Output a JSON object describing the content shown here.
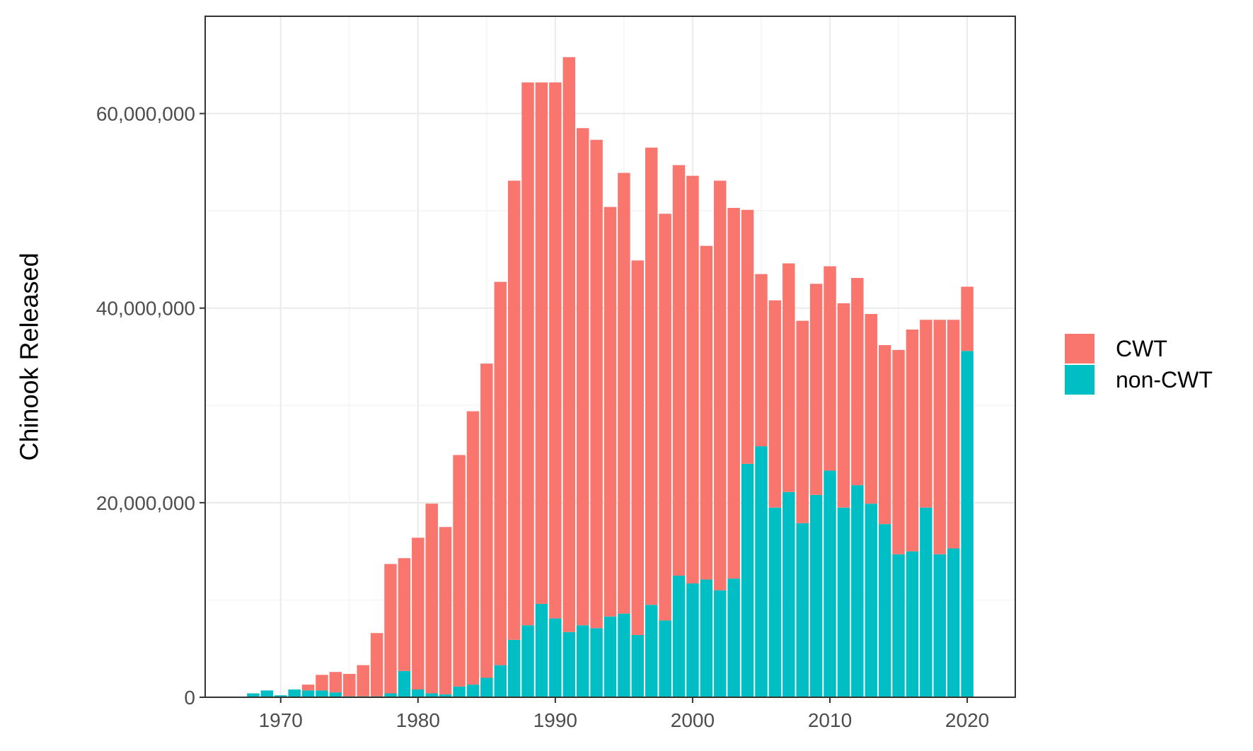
{
  "chart_data": {
    "type": "bar",
    "stacked": true,
    "title": "",
    "xlabel": "",
    "ylabel": "Chinook Released",
    "xlim": [
      1964.5,
      2023.5
    ],
    "ylim": [
      0,
      70000000
    ],
    "x_ticks": [
      1970,
      1980,
      1990,
      2000,
      2010,
      2020
    ],
    "x_tick_labels": [
      "1970",
      "1980",
      "1990",
      "2000",
      "2010",
      "2020"
    ],
    "y_ticks": [
      0,
      20000000,
      40000000,
      60000000
    ],
    "y_tick_labels": [
      "0",
      "20,000,000",
      "40,000,000",
      "60,000,000"
    ],
    "grid": true,
    "legend": {
      "position": "right",
      "entries": [
        {
          "name": "CWT",
          "color": "#F8766D"
        },
        {
          "name": "non-CWT",
          "color": "#00BFC4"
        }
      ]
    },
    "x": [
      1968,
      1969,
      1970,
      1971,
      1972,
      1973,
      1974,
      1975,
      1976,
      1977,
      1978,
      1979,
      1980,
      1981,
      1982,
      1983,
      1984,
      1985,
      1986,
      1987,
      1988,
      1989,
      1990,
      1991,
      1992,
      1993,
      1994,
      1995,
      1996,
      1997,
      1998,
      1999,
      2000,
      2001,
      2002,
      2003,
      2004,
      2005,
      2006,
      2007,
      2008,
      2009,
      2010,
      2011,
      2012,
      2013,
      2014,
      2015,
      2016,
      2017,
      2018,
      2019,
      2020
    ],
    "series": [
      {
        "name": "non-CWT",
        "color": "#00BFC4",
        "values": [
          400000,
          700000,
          200000,
          800000,
          700000,
          700000,
          500000,
          100000,
          100000,
          100000,
          400000,
          2700000,
          800000,
          400000,
          300000,
          1100000,
          1300000,
          2000000,
          3300000,
          5900000,
          7400000,
          9600000,
          8100000,
          6700000,
          7400000,
          7100000,
          8300000,
          8600000,
          6400000,
          9500000,
          7900000,
          12500000,
          11700000,
          12100000,
          11000000,
          12200000,
          24000000,
          25800000,
          19500000,
          21100000,
          17900000,
          20800000,
          23300000,
          19500000,
          21800000,
          19900000,
          17800000,
          14700000,
          15000000,
          19500000,
          14700000,
          15300000,
          35600000
        ]
      },
      {
        "name": "CWT",
        "color": "#F8766D",
        "values": [
          0,
          0,
          0,
          0,
          600000,
          1600000,
          2100000,
          2300000,
          3200000,
          6500000,
          13300000,
          11600000,
          15600000,
          19500000,
          17200000,
          23800000,
          28100000,
          32300000,
          39400000,
          47200000,
          55800000,
          53600000,
          55100000,
          59100000,
          51100000,
          50200000,
          42100000,
          45300000,
          38500000,
          47000000,
          41800000,
          42200000,
          41900000,
          34300000,
          42100000,
          38100000,
          26100000,
          17700000,
          21300000,
          23500000,
          20800000,
          21700000,
          21000000,
          21000000,
          21300000,
          19500000,
          18400000,
          21000000,
          22800000,
          19300000,
          24100000,
          23500000,
          6600000
        ]
      }
    ]
  }
}
